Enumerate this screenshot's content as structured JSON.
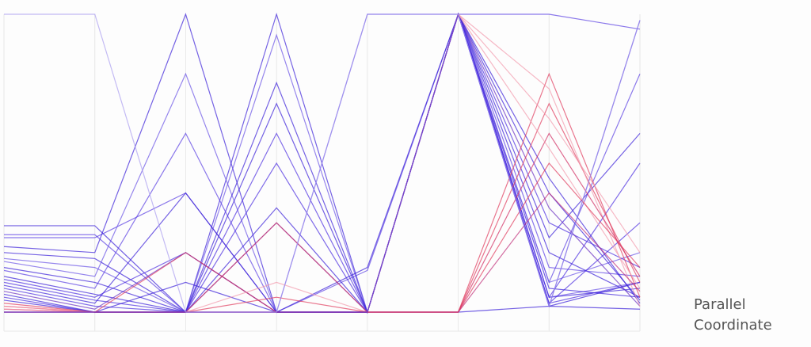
{
  "chart_data": {
    "type": "parallel",
    "label": "Parallel Coordinate",
    "ylim": [
      0,
      1
    ],
    "lines": [
      {
        "color": "#3b1fd9",
        "values": [
          0.29,
          0.29,
          0,
          0,
          0,
          1,
          0.02,
          0.98
        ]
      },
      {
        "color": "#5a3fe3",
        "values": [
          0.26,
          0.26,
          0,
          0,
          0,
          1,
          1,
          0.95
        ]
      },
      {
        "color": "#5a3fe3",
        "values": [
          0.25,
          0.25,
          0.4,
          0,
          0.14,
          1,
          0.1,
          0.8
        ]
      },
      {
        "color": "#3b1fd9",
        "values": [
          0.22,
          0.2,
          1,
          0,
          0,
          0,
          0.02,
          0.1
        ]
      },
      {
        "color": "#3b1fd9",
        "values": [
          0.2,
          0.18,
          0,
          1,
          0,
          1,
          0.05,
          0.08
        ]
      },
      {
        "color": "#6a52e6",
        "values": [
          0.18,
          0.15,
          0,
          0.93,
          0,
          1,
          0.1,
          0.2
        ]
      },
      {
        "color": "#6a52e6",
        "values": [
          0.17,
          0.12,
          0.8,
          0,
          0,
          1,
          0.05,
          0.1
        ]
      },
      {
        "color": "#3b1fd9",
        "values": [
          0.15,
          0.1,
          0,
          0.77,
          0,
          1,
          0.2,
          0.05
        ]
      },
      {
        "color": "#5a3fe3",
        "values": [
          0.14,
          0.08,
          0.6,
          0,
          1,
          1,
          0.15,
          0.12
        ]
      },
      {
        "color": "#3b1fd9",
        "values": [
          0.12,
          0.06,
          0,
          0.7,
          0,
          1,
          0.4,
          0.04
        ]
      },
      {
        "color": "#4b2ee0",
        "values": [
          0.11,
          0.05,
          0.2,
          0,
          0,
          1,
          0.3,
          0.15
        ]
      },
      {
        "color": "#4b2ee0",
        "values": [
          0.1,
          0.04,
          0,
          0.6,
          0,
          1,
          0.03,
          0.3
        ]
      },
      {
        "color": "#3b1fd9",
        "values": [
          0.09,
          0.03,
          0.4,
          0,
          0,
          1,
          0.25,
          0.6
        ]
      },
      {
        "color": "#4b2ee0",
        "values": [
          0.08,
          0.02,
          0,
          0.5,
          0,
          1,
          0.05,
          0.5
        ]
      },
      {
        "color": "#6a2fc0",
        "values": [
          0.07,
          0.01,
          0.2,
          0,
          0,
          1,
          0.35,
          0.02
        ]
      },
      {
        "color": "#3b1fd9",
        "values": [
          0.06,
          0,
          0,
          0.35,
          0,
          1,
          0.08,
          0.05
        ]
      },
      {
        "color": "#4b2ee0",
        "values": [
          0.05,
          0,
          0,
          0.3,
          0,
          1,
          0.03,
          0.1
        ]
      },
      {
        "color": "#3b1fd9",
        "values": [
          0.04,
          0,
          0.1,
          0,
          0.15,
          1,
          0.45,
          0.03
        ]
      },
      {
        "color": "#e03a5c",
        "values": [
          0.03,
          0,
          0,
          0.3,
          0,
          0,
          0.7,
          0.1
        ]
      },
      {
        "color": "#e03a5c",
        "values": [
          0.02,
          0,
          0.2,
          0,
          0,
          0,
          0.8,
          0.05
        ]
      },
      {
        "color": "#f29aac",
        "values": [
          0.02,
          0,
          0,
          0.1,
          0,
          1,
          0.75,
          0.02
        ]
      },
      {
        "color": "#d02a60",
        "values": [
          0.01,
          0,
          0,
          0,
          0,
          0,
          0.6,
          0.12
        ]
      },
      {
        "color": "#f29aac",
        "values": [
          0.01,
          0,
          0,
          0,
          0,
          1,
          0.55,
          0.08
        ]
      },
      {
        "color": "#e03a5c",
        "values": [
          0,
          0,
          0,
          0.05,
          0,
          0,
          0.5,
          0.15
        ]
      },
      {
        "color": "#f29aac",
        "values": [
          0,
          0,
          0,
          0,
          0,
          1,
          0.65,
          0.2
        ]
      },
      {
        "color": "#c0307a",
        "values": [
          0,
          0,
          0,
          0,
          0,
          0,
          0.4,
          0.07
        ]
      },
      {
        "color": "#3b1fd9",
        "values": [
          0,
          0,
          0,
          0,
          0,
          1,
          0.02,
          0.01
        ]
      },
      {
        "color": "#a99cf0",
        "values": [
          1,
          1,
          0,
          0,
          1,
          1,
          0.02,
          0.98
        ]
      }
    ]
  }
}
